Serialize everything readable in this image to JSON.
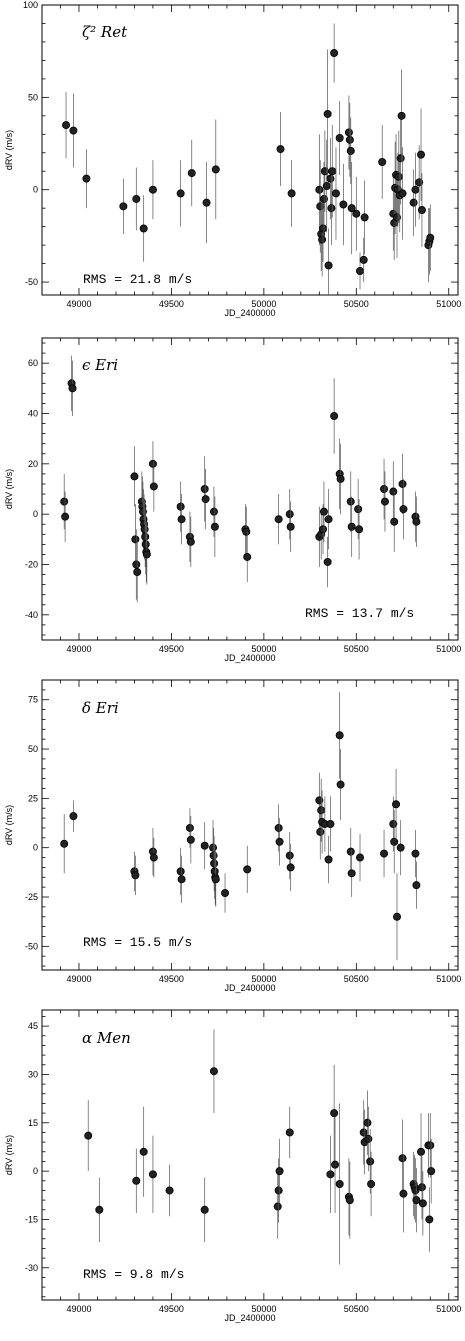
{
  "chart_data": [
    {
      "type": "scatter",
      "title": "ζ² Ret",
      "rms_label": "RMS = 21.8 m/s",
      "ylabel": "dRV (m/s)",
      "xlabel": "JD_2400000",
      "xlim": [
        48800,
        51050
      ],
      "ylim": [
        -57,
        100
      ],
      "yticks": [
        -50,
        0,
        50,
        100
      ],
      "xticks": [
        49000,
        49500,
        50000,
        50500,
        51000
      ],
      "x_tick_labels": [
        "49000",
        "49500",
        "50000",
        "50500",
        "51000"
      ],
      "y_tick_labels": [
        "-50",
        "0",
        "50",
        "100"
      ],
      "points": [
        {
          "x": 48930,
          "y": 35,
          "err": 18
        },
        {
          "x": 48970,
          "y": 32,
          "err": 20
        },
        {
          "x": 49040,
          "y": 6,
          "err": 16
        },
        {
          "x": 49240,
          "y": -9,
          "err": 15
        },
        {
          "x": 49310,
          "y": -5,
          "err": 17
        },
        {
          "x": 49350,
          "y": -21,
          "err": 18
        },
        {
          "x": 49400,
          "y": 0,
          "err": 16
        },
        {
          "x": 49550,
          "y": -2,
          "err": 18
        },
        {
          "x": 49610,
          "y": 9,
          "err": 18
        },
        {
          "x": 49690,
          "y": -7,
          "err": 22
        },
        {
          "x": 49740,
          "y": 11,
          "err": 27
        },
        {
          "x": 50090,
          "y": 22,
          "err": 20
        },
        {
          "x": 50150,
          "y": -2,
          "err": 18
        },
        {
          "x": 50300,
          "y": 0,
          "err": 30
        },
        {
          "x": 50305,
          "y": -9,
          "err": 25
        },
        {
          "x": 50310,
          "y": -24,
          "err": 20
        },
        {
          "x": 50315,
          "y": -27,
          "err": 20
        },
        {
          "x": 50320,
          "y": -21,
          "err": 18
        },
        {
          "x": 50325,
          "y": -5,
          "err": 20
        },
        {
          "x": 50330,
          "y": 10,
          "err": 22
        },
        {
          "x": 50340,
          "y": 2,
          "err": 25
        },
        {
          "x": 50345,
          "y": 41,
          "err": 35
        },
        {
          "x": 50350,
          "y": -41,
          "err": 20
        },
        {
          "x": 50360,
          "y": 6,
          "err": 22
        },
        {
          "x": 50365,
          "y": -10,
          "err": 20
        },
        {
          "x": 50370,
          "y": 10,
          "err": 25
        },
        {
          "x": 50380,
          "y": 74,
          "err": 16
        },
        {
          "x": 50390,
          "y": -2,
          "err": 25
        },
        {
          "x": 50410,
          "y": 28,
          "err": 20
        },
        {
          "x": 50430,
          "y": -8,
          "err": 22
        },
        {
          "x": 50460,
          "y": 31,
          "err": 20
        },
        {
          "x": 50465,
          "y": 27,
          "err": 20
        },
        {
          "x": 50470,
          "y": 21,
          "err": 18
        },
        {
          "x": 50475,
          "y": -10,
          "err": 25
        },
        {
          "x": 50500,
          "y": -13,
          "err": 20
        },
        {
          "x": 50520,
          "y": -44,
          "err": 10
        },
        {
          "x": 50540,
          "y": -38,
          "err": 12
        },
        {
          "x": 50545,
          "y": -15,
          "err": 20
        },
        {
          "x": 50640,
          "y": 15,
          "err": 20
        },
        {
          "x": 50700,
          "y": -13,
          "err": 20
        },
        {
          "x": 50705,
          "y": -18,
          "err": 20
        },
        {
          "x": 50710,
          "y": 1,
          "err": 25
        },
        {
          "x": 50715,
          "y": 8,
          "err": 22
        },
        {
          "x": 50720,
          "y": -15,
          "err": 22
        },
        {
          "x": 50725,
          "y": 0,
          "err": 20
        },
        {
          "x": 50730,
          "y": 7,
          "err": 25
        },
        {
          "x": 50735,
          "y": -3,
          "err": 20
        },
        {
          "x": 50740,
          "y": 17,
          "err": 25
        },
        {
          "x": 50745,
          "y": 40,
          "err": 25
        },
        {
          "x": 50750,
          "y": -2,
          "err": 25
        },
        {
          "x": 50810,
          "y": -7,
          "err": 18
        },
        {
          "x": 50820,
          "y": 0,
          "err": 20
        },
        {
          "x": 50840,
          "y": 4,
          "err": 20
        },
        {
          "x": 50850,
          "y": 19,
          "err": 25
        },
        {
          "x": 50855,
          "y": -11,
          "err": 20
        },
        {
          "x": 50890,
          "y": -30,
          "err": 20
        },
        {
          "x": 50895,
          "y": -28,
          "err": 18
        },
        {
          "x": 50900,
          "y": -26,
          "err": 18
        }
      ]
    },
    {
      "type": "scatter",
      "title": "ϵ Eri",
      "rms_label": "RMS = 13.7 m/s",
      "ylabel": "dRV (m/s)",
      "xlabel": "JD_2400000",
      "xlim": [
        48800,
        51050
      ],
      "ylim": [
        -50,
        70
      ],
      "yticks": [
        -40,
        -20,
        0,
        20,
        40,
        60
      ],
      "xticks": [
        49000,
        49500,
        50000,
        50500,
        51000
      ],
      "x_tick_labels": [
        "49000",
        "49500",
        "50000",
        "50500",
        "51000"
      ],
      "y_tick_labels": [
        "-40",
        "-20",
        "0",
        "20",
        "40",
        "60"
      ],
      "points": [
        {
          "x": 48920,
          "y": 5,
          "err": 11
        },
        {
          "x": 48925,
          "y": -1,
          "err": 10
        },
        {
          "x": 48960,
          "y": 52,
          "err": 11
        },
        {
          "x": 48965,
          "y": 50,
          "err": 11
        },
        {
          "x": 49300,
          "y": 15,
          "err": 12
        },
        {
          "x": 49305,
          "y": -10,
          "err": 14
        },
        {
          "x": 49310,
          "y": -20,
          "err": 14
        },
        {
          "x": 49315,
          "y": -23,
          "err": 12
        },
        {
          "x": 49340,
          "y": 5,
          "err": 12
        },
        {
          "x": 49343,
          "y": 3,
          "err": 12
        },
        {
          "x": 49346,
          "y": 1,
          "err": 12
        },
        {
          "x": 49349,
          "y": -2,
          "err": 12
        },
        {
          "x": 49352,
          "y": -4,
          "err": 12
        },
        {
          "x": 49355,
          "y": -6,
          "err": 12
        },
        {
          "x": 49358,
          "y": -9,
          "err": 12
        },
        {
          "x": 49361,
          "y": -12,
          "err": 12
        },
        {
          "x": 49364,
          "y": -15,
          "err": 12
        },
        {
          "x": 49367,
          "y": -16,
          "err": 12
        },
        {
          "x": 49400,
          "y": 20,
          "err": 9
        },
        {
          "x": 49405,
          "y": 11,
          "err": 10
        },
        {
          "x": 49550,
          "y": 3,
          "err": 10
        },
        {
          "x": 49555,
          "y": -2,
          "err": 10
        },
        {
          "x": 49600,
          "y": -9,
          "err": 10
        },
        {
          "x": 49605,
          "y": -11,
          "err": 10
        },
        {
          "x": 49680,
          "y": 10,
          "err": 13
        },
        {
          "x": 49685,
          "y": 6,
          "err": 12
        },
        {
          "x": 49730,
          "y": 1,
          "err": 10
        },
        {
          "x": 49735,
          "y": -5,
          "err": 12
        },
        {
          "x": 49900,
          "y": -6,
          "err": 10
        },
        {
          "x": 49905,
          "y": -7,
          "err": 10
        },
        {
          "x": 49910,
          "y": -17,
          "err": 10
        },
        {
          "x": 50080,
          "y": -2,
          "err": 10
        },
        {
          "x": 50140,
          "y": 0,
          "err": 10
        },
        {
          "x": 50145,
          "y": -5,
          "err": 10
        },
        {
          "x": 50300,
          "y": -9,
          "err": 12
        },
        {
          "x": 50310,
          "y": -8,
          "err": 10
        },
        {
          "x": 50320,
          "y": -6,
          "err": 10
        },
        {
          "x": 50325,
          "y": 1,
          "err": 12
        },
        {
          "x": 50345,
          "y": -19,
          "err": 10
        },
        {
          "x": 50350,
          "y": -2,
          "err": 12
        },
        {
          "x": 50380,
          "y": 39,
          "err": 15
        },
        {
          "x": 50410,
          "y": 16,
          "err": 14
        },
        {
          "x": 50415,
          "y": 14,
          "err": 14
        },
        {
          "x": 50470,
          "y": 5,
          "err": 12
        },
        {
          "x": 50475,
          "y": -5,
          "err": 12
        },
        {
          "x": 50510,
          "y": 2,
          "err": 12
        },
        {
          "x": 50515,
          "y": -6,
          "err": 12
        },
        {
          "x": 50650,
          "y": 10,
          "err": 12
        },
        {
          "x": 50655,
          "y": 5,
          "err": 12
        },
        {
          "x": 50700,
          "y": 9,
          "err": 12
        },
        {
          "x": 50705,
          "y": -3,
          "err": 12
        },
        {
          "x": 50750,
          "y": 12,
          "err": 12
        },
        {
          "x": 50755,
          "y": 2,
          "err": 12
        },
        {
          "x": 50820,
          "y": -1,
          "err": 10
        },
        {
          "x": 50825,
          "y": -3,
          "err": 10
        }
      ]
    },
    {
      "type": "scatter",
      "title": "δ Eri",
      "rms_label": "RMS = 15.5 m/s",
      "ylabel": "dRV (m/s)",
      "xlabel": "JD_2400000",
      "xlim": [
        48800,
        51050
      ],
      "ylim": [
        -62,
        85
      ],
      "yticks": [
        -50,
        -25,
        0,
        25,
        50,
        75
      ],
      "xticks": [
        49000,
        49500,
        50000,
        50500,
        51000
      ],
      "x_tick_labels": [
        "49000",
        "49500",
        "50000",
        "50500",
        "51000"
      ],
      "y_tick_labels": [
        "-50",
        "-25",
        "0",
        "25",
        "50",
        "75"
      ],
      "points": [
        {
          "x": 48920,
          "y": 2,
          "err": 15
        },
        {
          "x": 48970,
          "y": 16,
          "err": 8
        },
        {
          "x": 49300,
          "y": -12,
          "err": 10
        },
        {
          "x": 49305,
          "y": -14,
          "err": 10
        },
        {
          "x": 49400,
          "y": -2,
          "err": 12
        },
        {
          "x": 49405,
          "y": -5,
          "err": 10
        },
        {
          "x": 49550,
          "y": -12,
          "err": 12
        },
        {
          "x": 49555,
          "y": -16,
          "err": 12
        },
        {
          "x": 49600,
          "y": 10,
          "err": 10
        },
        {
          "x": 49605,
          "y": 4,
          "err": 12
        },
        {
          "x": 49680,
          "y": 1,
          "err": 12
        },
        {
          "x": 49725,
          "y": 0,
          "err": 14
        },
        {
          "x": 49728,
          "y": -4,
          "err": 14
        },
        {
          "x": 49731,
          "y": -8,
          "err": 14
        },
        {
          "x": 49734,
          "y": -12,
          "err": 14
        },
        {
          "x": 49737,
          "y": -15,
          "err": 14
        },
        {
          "x": 49740,
          "y": -16,
          "err": 14
        },
        {
          "x": 49790,
          "y": -23,
          "err": 10
        },
        {
          "x": 49910,
          "y": -11,
          "err": 12
        },
        {
          "x": 50080,
          "y": 10,
          "err": 12
        },
        {
          "x": 50085,
          "y": 3,
          "err": 12
        },
        {
          "x": 50140,
          "y": -4,
          "err": 12
        },
        {
          "x": 50145,
          "y": -10,
          "err": 12
        },
        {
          "x": 50300,
          "y": 24,
          "err": 14
        },
        {
          "x": 50305,
          "y": 8,
          "err": 14
        },
        {
          "x": 50310,
          "y": 19,
          "err": 16
        },
        {
          "x": 50315,
          "y": 13,
          "err": 16
        },
        {
          "x": 50330,
          "y": 12,
          "err": 14
        },
        {
          "x": 50350,
          "y": -6,
          "err": 12
        },
        {
          "x": 50360,
          "y": 12,
          "err": 14
        },
        {
          "x": 50410,
          "y": 57,
          "err": 22
        },
        {
          "x": 50415,
          "y": 32,
          "err": 18
        },
        {
          "x": 50470,
          "y": -2,
          "err": 12
        },
        {
          "x": 50475,
          "y": -13,
          "err": 12
        },
        {
          "x": 50520,
          "y": -5,
          "err": 12
        },
        {
          "x": 50650,
          "y": -3,
          "err": 12
        },
        {
          "x": 50700,
          "y": 12,
          "err": 14
        },
        {
          "x": 50705,
          "y": 3,
          "err": 16
        },
        {
          "x": 50715,
          "y": 22,
          "err": 18
        },
        {
          "x": 50720,
          "y": -35,
          "err": 22
        },
        {
          "x": 50740,
          "y": 0,
          "err": 14
        },
        {
          "x": 50820,
          "y": -3,
          "err": 12
        },
        {
          "x": 50825,
          "y": -19,
          "err": 12
        }
      ]
    },
    {
      "type": "scatter",
      "title": "α Men",
      "rms_label": "RMS = 9.8 m/s",
      "ylabel": "dRV (m/s)",
      "xlabel": "JD_2400000",
      "xlim": [
        48800,
        51050
      ],
      "ylim": [
        -40,
        50
      ],
      "yticks": [
        -30,
        -15,
        0,
        15,
        30,
        45
      ],
      "xticks": [
        49000,
        49500,
        50000,
        50500,
        51000
      ],
      "x_tick_labels": [
        "49000",
        "49500",
        "50000",
        "50500",
        "51000"
      ],
      "y_tick_labels": [
        "-30",
        "-15",
        "0",
        "15",
        "30",
        "45"
      ],
      "points": [
        {
          "x": 49050,
          "y": 11,
          "err": 11
        },
        {
          "x": 49110,
          "y": -12,
          "err": 10
        },
        {
          "x": 49310,
          "y": -3,
          "err": 10
        },
        {
          "x": 49350,
          "y": 6,
          "err": 14
        },
        {
          "x": 49400,
          "y": -1,
          "err": 12
        },
        {
          "x": 49490,
          "y": -6,
          "err": 8
        },
        {
          "x": 49680,
          "y": -12,
          "err": 10
        },
        {
          "x": 49730,
          "y": 31,
          "err": 13
        },
        {
          "x": 50075,
          "y": -11,
          "err": 10
        },
        {
          "x": 50080,
          "y": -6,
          "err": 10
        },
        {
          "x": 50085,
          "y": 0,
          "err": 10
        },
        {
          "x": 50140,
          "y": 12,
          "err": 8
        },
        {
          "x": 50360,
          "y": -1,
          "err": 12
        },
        {
          "x": 50380,
          "y": 18,
          "err": 15
        },
        {
          "x": 50385,
          "y": 2,
          "err": 15
        },
        {
          "x": 50410,
          "y": -4,
          "err": 25
        },
        {
          "x": 50460,
          "y": -8,
          "err": 12
        },
        {
          "x": 50465,
          "y": -9,
          "err": 12
        },
        {
          "x": 50540,
          "y": 12,
          "err": 10
        },
        {
          "x": 50545,
          "y": 9,
          "err": 10
        },
        {
          "x": 50560,
          "y": 15,
          "err": 10
        },
        {
          "x": 50565,
          "y": 10,
          "err": 10
        },
        {
          "x": 50575,
          "y": 3,
          "err": 10
        },
        {
          "x": 50580,
          "y": -4,
          "err": 10
        },
        {
          "x": 50750,
          "y": 4,
          "err": 12
        },
        {
          "x": 50755,
          "y": -7,
          "err": 12
        },
        {
          "x": 50810,
          "y": -4,
          "err": 10
        },
        {
          "x": 50815,
          "y": -5,
          "err": 10
        },
        {
          "x": 50820,
          "y": -6,
          "err": 10
        },
        {
          "x": 50825,
          "y": -9,
          "err": 10
        },
        {
          "x": 50850,
          "y": 6,
          "err": 12
        },
        {
          "x": 50855,
          "y": -5,
          "err": 10
        },
        {
          "x": 50860,
          "y": -10,
          "err": 10
        },
        {
          "x": 50890,
          "y": 8,
          "err": 10
        },
        {
          "x": 50895,
          "y": -15,
          "err": 10
        },
        {
          "x": 50900,
          "y": 8,
          "err": 10
        },
        {
          "x": 50905,
          "y": 0,
          "err": 10
        }
      ]
    }
  ]
}
